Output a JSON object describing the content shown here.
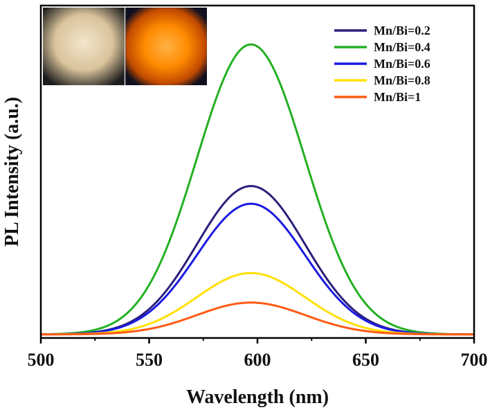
{
  "chart_data": {
    "type": "line",
    "title": "",
    "xlabel": "Wavelength (nm)",
    "ylabel": "PL Intensity (a.u.)",
    "xlim": [
      500,
      700
    ],
    "ylim": [
      0,
      1.0
    ],
    "xticks": [
      500,
      550,
      600,
      650,
      700
    ],
    "xtick_labels": [
      "500",
      "550",
      "600",
      "650",
      "700"
    ],
    "y_ticks_shown": false,
    "legend_position": "top-right",
    "inset": "two photos of the powder sample (daylight and under UV excitation)",
    "series": [
      {
        "name": "Mn/Bi=0.2",
        "color": "#2b1f7a",
        "peak_x": 597,
        "peak_y": 0.515,
        "sigma": 25,
        "baseline": 0.012
      },
      {
        "name": "Mn/Bi=0.4",
        "color": "#22b022",
        "peak_x": 597,
        "peak_y": 0.995,
        "sigma": 25,
        "baseline": 0.012
      },
      {
        "name": "Mn/Bi=0.6",
        "color": "#1a1ae0",
        "peak_x": 597,
        "peak_y": 0.455,
        "sigma": 25,
        "baseline": 0.012
      },
      {
        "name": "Mn/Bi=0.8",
        "color": "#ffe000",
        "peak_x": 597,
        "peak_y": 0.22,
        "sigma": 25,
        "baseline": 0.012
      },
      {
        "name": "Mn/Bi=1",
        "color": "#ff5a14",
        "peak_x": 597,
        "peak_y": 0.12,
        "sigma": 25,
        "baseline": 0.012
      }
    ]
  }
}
